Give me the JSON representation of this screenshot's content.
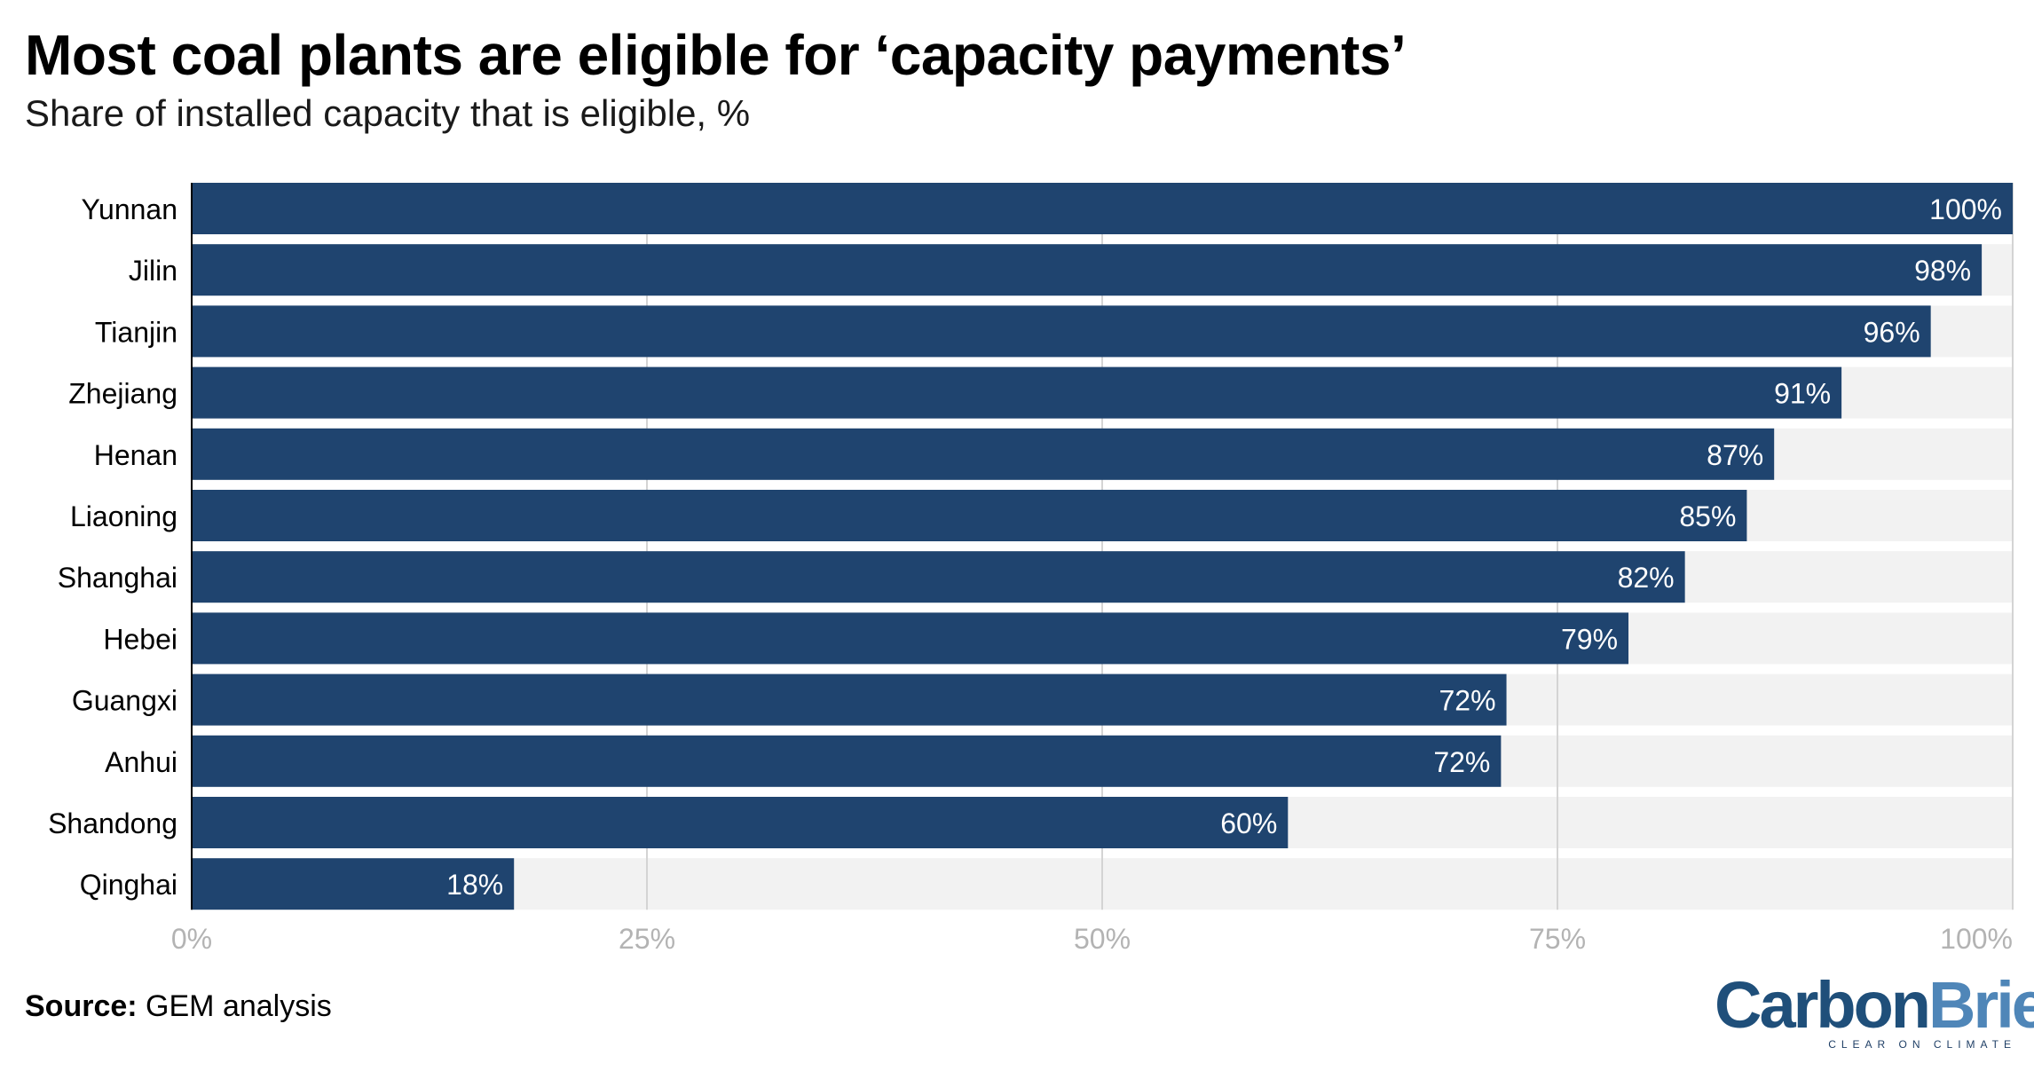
{
  "header": {
    "title": "Most coal plants are eligible for ‘capacity payments’",
    "subtitle": "Share of installed capacity that is eligible, %"
  },
  "footer": {
    "source_label": "Source:",
    "source_text": "GEM analysis"
  },
  "brand": {
    "name_part1": "Carbon",
    "name_part2": "Brief",
    "tagline": "CLEAR ON CLIMATE"
  },
  "colors": {
    "bar": "#1f446f",
    "track": "#f2f2f2",
    "grid": "#d4d4d4",
    "tick_text": "#b3b3b3",
    "label_text": "#000000",
    "value_text": "#ffffff"
  },
  "chart_data": {
    "type": "bar",
    "orientation": "horizontal",
    "title": "Most coal plants are eligible for ‘capacity payments’",
    "subtitle": "Share of installed capacity that is eligible, %",
    "categories": [
      "Yunnan",
      "Jilin",
      "Tianjin",
      "Zhejiang",
      "Henan",
      "Liaoning",
      "Shanghai",
      "Hebei",
      "Guangxi",
      "Anhui",
      "Shandong",
      "Qinghai"
    ],
    "values": [
      100,
      98.3,
      95.5,
      90.6,
      86.9,
      85.4,
      82,
      78.9,
      72.2,
      71.9,
      60.2,
      17.7
    ],
    "value_labels": [
      "100%",
      "98%",
      "96%",
      "91%",
      "87%",
      "85%",
      "82%",
      "79%",
      "72%",
      "72%",
      "60%",
      "18%"
    ],
    "xlim": [
      0,
      100
    ],
    "x_ticks": [
      0,
      25,
      50,
      75,
      100
    ],
    "x_tick_labels": [
      "0%",
      "25%",
      "50%",
      "75%",
      "100%"
    ],
    "grid": true
  }
}
